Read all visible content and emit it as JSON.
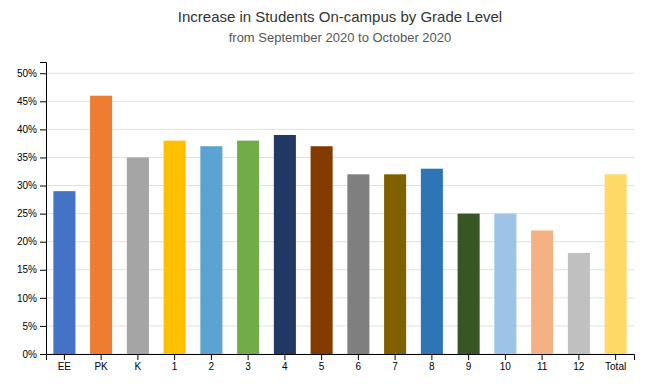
{
  "chart_data": {
    "type": "bar",
    "title": "Increase in Students On-campus by Grade Level",
    "subtitle": "from September 2020 to October 2020",
    "categories": [
      "EE",
      "PK",
      "K",
      "1",
      "2",
      "3",
      "4",
      "5",
      "6",
      "7",
      "8",
      "9",
      "10",
      "11",
      "12",
      "Total"
    ],
    "values": [
      0.29,
      0.46,
      0.35,
      0.38,
      0.37,
      0.38,
      0.39,
      0.37,
      0.32,
      0.32,
      0.33,
      0.25,
      0.25,
      0.22,
      0.18,
      0.32
    ],
    "colors": [
      "#4472C4",
      "#ED7D31",
      "#A5A5A5",
      "#FFC000",
      "#5BA3D0",
      "#70AD47",
      "#1F3864",
      "#833C00",
      "#7F7F7F",
      "#806000",
      "#2E75B6",
      "#375623",
      "#9DC3E6",
      "#F4B183",
      "#C0C0C0",
      "#FFD966"
    ],
    "ylim": [
      0,
      0.52
    ],
    "yticks": [
      {
        "value": 0.0,
        "label": "0%"
      },
      {
        "value": 0.05,
        "label": "5%"
      },
      {
        "value": 0.1,
        "label": "10%"
      },
      {
        "value": 0.15,
        "label": "15%"
      },
      {
        "value": 0.2,
        "label": "20%"
      },
      {
        "value": 0.25,
        "label": "25%"
      },
      {
        "value": 0.3,
        "label": "30%"
      },
      {
        "value": 0.35,
        "label": "35%"
      },
      {
        "value": 0.4,
        "label": "40%"
      },
      {
        "value": 0.45,
        "label": "45%"
      },
      {
        "value": 0.5,
        "label": "50%"
      }
    ],
    "grid": true
  }
}
